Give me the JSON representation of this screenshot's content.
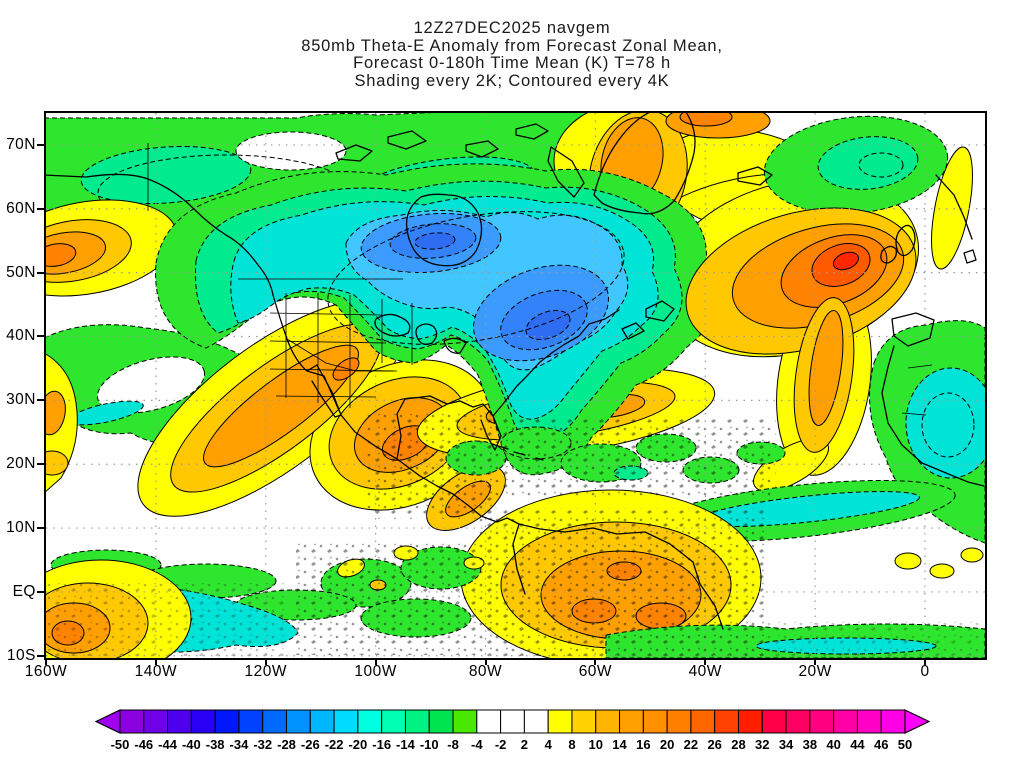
{
  "chart_data": {
    "type": "heatmap",
    "model": "navgem",
    "init_time": "12Z27DEC2025",
    "valid_time": "T=78 h",
    "title_lines": [
      "12Z27DEC2025 navgem",
      "850mb Theta-E Anomaly from Forecast Zonal Mean,",
      "Forecast 0-180h Time Mean (K) T=78 h",
      "Shading every 2K; Contoured every 4K"
    ],
    "unit": "K",
    "shading_interval_K": 2,
    "contour_interval_K": 4,
    "grid": true,
    "x_axis": {
      "tick_labels": [
        "160W",
        "140W",
        "120W",
        "100W",
        "80W",
        "60W",
        "40W",
        "20W",
        "0"
      ],
      "tick_lon_deg": [
        -160,
        -140,
        -120,
        -100,
        -80,
        -60,
        -40,
        -20,
        0
      ]
    },
    "y_axis": {
      "tick_labels": [
        "70N",
        "60N",
        "50N",
        "40N",
        "30N",
        "20N",
        "10N",
        "EQ",
        "10S"
      ],
      "tick_lat_deg": [
        70,
        60,
        50,
        40,
        30,
        20,
        10,
        0,
        -10
      ]
    },
    "colorbar": {
      "unit": "K",
      "boundary_labels": [
        -50,
        -46,
        -44,
        -40,
        -38,
        -34,
        -32,
        -28,
        -26,
        -22,
        -20,
        -16,
        -14,
        -10,
        -8,
        -4,
        -2,
        2,
        4,
        8,
        10,
        14,
        16,
        20,
        22,
        26,
        28,
        32,
        34,
        38,
        40,
        44,
        46,
        50
      ],
      "colors": [
        "#a000f0",
        "#8a00e0",
        "#7000e8",
        "#4e00ee",
        "#2a00f4",
        "#0018fa",
        "#0042ff",
        "#006aff",
        "#0092ff",
        "#00b6ff",
        "#00dcff",
        "#00ffe0",
        "#00ffb0",
        "#00f282",
        "#00e450",
        "#48e800",
        "#ffffff",
        "#ffffff",
        "#ffffff",
        "#ffff00",
        "#ffd200",
        "#ffb400",
        "#ffa000",
        "#ff9000",
        "#ff8000",
        "#ff6600",
        "#ff4200",
        "#ff1e00",
        "#ff0048",
        "#ff0062",
        "#ff0080",
        "#ff00a6",
        "#ff00c6",
        "#ff00e4",
        "#ff00fa"
      ]
    },
    "features": [
      {
        "name": "cold-anomaly-central-canada",
        "approx_center": "95W 54N",
        "approx_extreme_K": -26
      },
      {
        "name": "cold-anomaly-quebec-nw-atlantic",
        "approx_center": "65W 46N",
        "approx_extreme_K": -26
      },
      {
        "name": "warm-anomaly-ne-atlantic",
        "approx_center": "18W 50N",
        "approx_extreme_K": 30
      },
      {
        "name": "warm-band-sw-us-mexico",
        "approx_center": "110W 30N",
        "approx_extreme_K": 22
      },
      {
        "name": "warm-anomaly-greenland",
        "approx_center": "45W 70N",
        "approx_extreme_K": 18
      },
      {
        "name": "warm-anomaly-tropical-south-america",
        "approx_center": "65W 2N",
        "approx_extreme_K": 18
      },
      {
        "name": "cool-anomaly-nw-africa",
        "approx_center": "5W 22N",
        "approx_extreme_K": -14
      },
      {
        "name": "cool-anomaly-norwegian-sea",
        "approx_center": "12W 68N",
        "approx_extreme_K": -10
      },
      {
        "name": "cool-band-alaska-arctic-canada",
        "approx_center": "120W 68N",
        "approx_extreme_K": -10
      },
      {
        "name": "warm-anomaly-bering-aleutians",
        "approx_center": "158W 57N",
        "approx_extreme_K": 16
      },
      {
        "name": "cool-swirl-ne-pacific",
        "approx_center": "145W 30N",
        "approx_extreme_K": -12
      },
      {
        "name": "warm-band-gulf-subtropical-atlantic",
        "approx_center": "75W 25N",
        "approx_extreme_K": 14
      },
      {
        "name": "cold-pool-equatorial-east-pacific",
        "approx_center": "150W 2S",
        "approx_extreme_K": -16
      }
    ]
  }
}
